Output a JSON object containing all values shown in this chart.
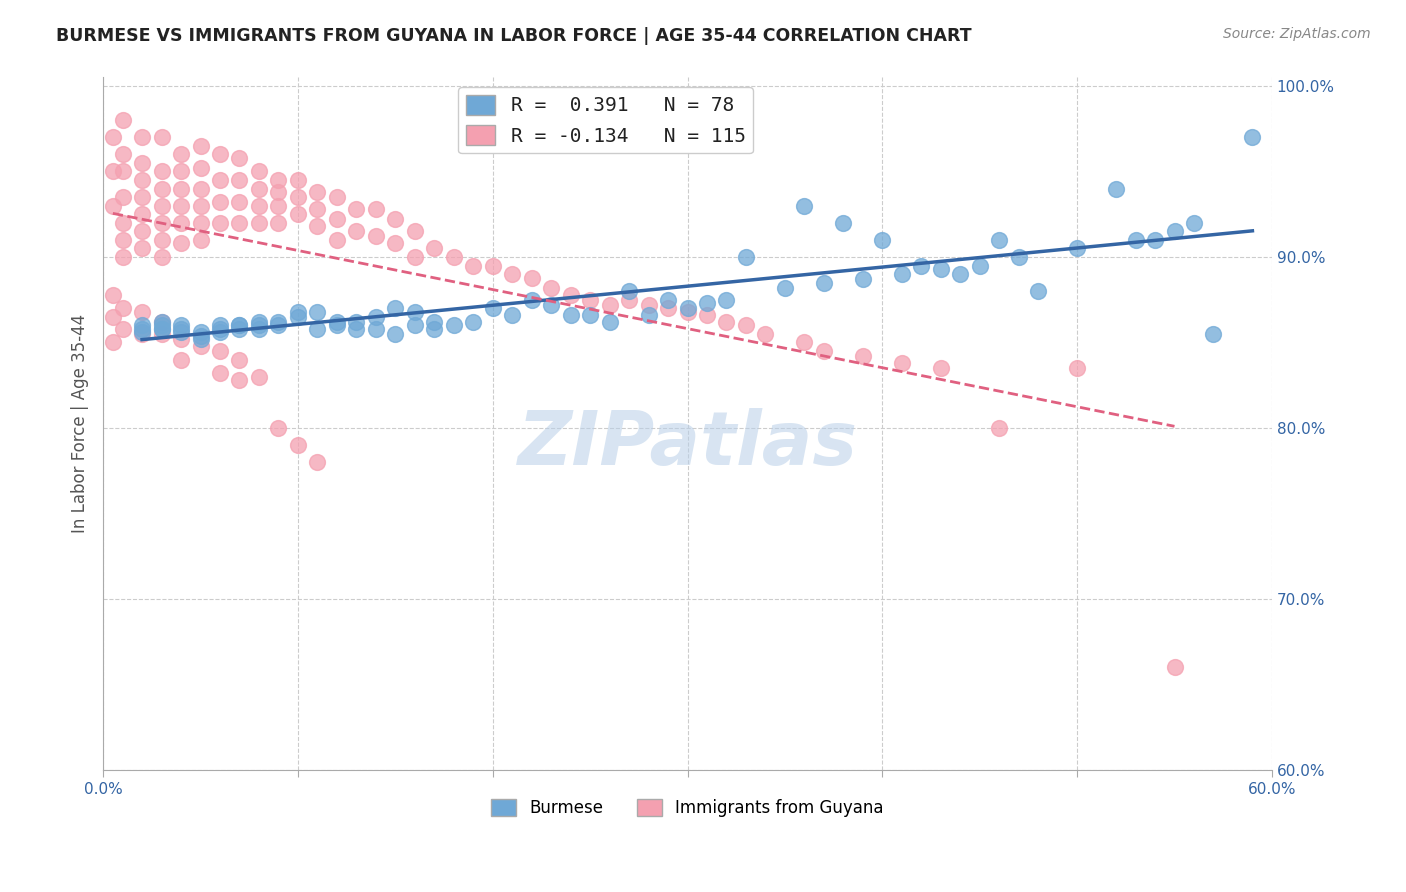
{
  "title": "BURMESE VS IMMIGRANTS FROM GUYANA IN LABOR FORCE | AGE 35-44 CORRELATION CHART",
  "source": "Source: ZipAtlas.com",
  "ylabel": "In Labor Force | Age 35-44",
  "blue_R": 0.391,
  "blue_N": 78,
  "pink_R": -0.134,
  "pink_N": 115,
  "legend_blue_label": "Burmese",
  "legend_pink_label": "Immigrants from Guyana",
  "xlim": [
    0.0,
    0.6
  ],
  "ylim": [
    0.6,
    1.005
  ],
  "xticks": [
    0.0,
    0.1,
    0.2,
    0.3,
    0.4,
    0.5,
    0.6
  ],
  "xtick_labels": [
    "0.0%",
    "",
    "",
    "",
    "",
    "",
    "60.0%"
  ],
  "ytick_labels_right": [
    "60.0%",
    "70.0%",
    "80.0%",
    "90.0%",
    "100.0%"
  ],
  "yticks_right": [
    0.6,
    0.7,
    0.8,
    0.9,
    1.0
  ],
  "blue_color": "#6fa8d6",
  "pink_color": "#f4a0b0",
  "blue_line_color": "#3465a4",
  "pink_line_color": "#e06080",
  "grid_color": "#cccccc",
  "background_color": "#ffffff",
  "watermark": "ZIPatlas",
  "blue_scatter_x": [
    0.02,
    0.02,
    0.02,
    0.03,
    0.03,
    0.03,
    0.03,
    0.04,
    0.04,
    0.04,
    0.05,
    0.05,
    0.05,
    0.06,
    0.06,
    0.06,
    0.07,
    0.07,
    0.07,
    0.08,
    0.08,
    0.08,
    0.09,
    0.09,
    0.1,
    0.1,
    0.11,
    0.11,
    0.12,
    0.12,
    0.13,
    0.13,
    0.14,
    0.14,
    0.15,
    0.15,
    0.16,
    0.16,
    0.17,
    0.17,
    0.18,
    0.19,
    0.2,
    0.21,
    0.22,
    0.23,
    0.24,
    0.25,
    0.26,
    0.27,
    0.28,
    0.29,
    0.3,
    0.31,
    0.32,
    0.33,
    0.35,
    0.36,
    0.37,
    0.38,
    0.39,
    0.4,
    0.41,
    0.42,
    0.43,
    0.44,
    0.45,
    0.46,
    0.47,
    0.48,
    0.5,
    0.52,
    0.53,
    0.54,
    0.55,
    0.56,
    0.57,
    0.59
  ],
  "blue_scatter_y": [
    0.856,
    0.86,
    0.858,
    0.858,
    0.862,
    0.86,
    0.858,
    0.86,
    0.858,
    0.856,
    0.856,
    0.852,
    0.854,
    0.858,
    0.86,
    0.856,
    0.86,
    0.858,
    0.86,
    0.858,
    0.862,
    0.86,
    0.862,
    0.86,
    0.865,
    0.868,
    0.868,
    0.858,
    0.86,
    0.862,
    0.862,
    0.858,
    0.865,
    0.858,
    0.87,
    0.855,
    0.868,
    0.86,
    0.862,
    0.858,
    0.86,
    0.862,
    0.87,
    0.866,
    0.875,
    0.872,
    0.866,
    0.866,
    0.862,
    0.88,
    0.866,
    0.875,
    0.87,
    0.873,
    0.875,
    0.9,
    0.882,
    0.93,
    0.885,
    0.92,
    0.887,
    0.91,
    0.89,
    0.895,
    0.893,
    0.89,
    0.895,
    0.91,
    0.9,
    0.88,
    0.905,
    0.94,
    0.91,
    0.91,
    0.915,
    0.92,
    0.855,
    0.97
  ],
  "pink_scatter_x": [
    0.005,
    0.005,
    0.005,
    0.01,
    0.01,
    0.01,
    0.01,
    0.01,
    0.01,
    0.01,
    0.02,
    0.02,
    0.02,
    0.02,
    0.02,
    0.02,
    0.02,
    0.03,
    0.03,
    0.03,
    0.03,
    0.03,
    0.03,
    0.03,
    0.04,
    0.04,
    0.04,
    0.04,
    0.04,
    0.04,
    0.05,
    0.05,
    0.05,
    0.05,
    0.05,
    0.05,
    0.06,
    0.06,
    0.06,
    0.06,
    0.07,
    0.07,
    0.07,
    0.07,
    0.08,
    0.08,
    0.08,
    0.08,
    0.09,
    0.09,
    0.09,
    0.09,
    0.1,
    0.1,
    0.1,
    0.11,
    0.11,
    0.11,
    0.12,
    0.12,
    0.12,
    0.13,
    0.13,
    0.14,
    0.14,
    0.15,
    0.15,
    0.16,
    0.16,
    0.17,
    0.18,
    0.19,
    0.2,
    0.21,
    0.22,
    0.23,
    0.24,
    0.25,
    0.26,
    0.27,
    0.28,
    0.29,
    0.3,
    0.31,
    0.32,
    0.33,
    0.34,
    0.36,
    0.37,
    0.39,
    0.41,
    0.43,
    0.46,
    0.5,
    0.55,
    0.005,
    0.005,
    0.005,
    0.01,
    0.01,
    0.02,
    0.02,
    0.03,
    0.03,
    0.04,
    0.04,
    0.05,
    0.06,
    0.06,
    0.07,
    0.07,
    0.08,
    0.09,
    0.1,
    0.11
  ],
  "pink_scatter_y": [
    0.97,
    0.95,
    0.93,
    0.98,
    0.96,
    0.95,
    0.935,
    0.92,
    0.91,
    0.9,
    0.97,
    0.955,
    0.945,
    0.935,
    0.925,
    0.915,
    0.905,
    0.97,
    0.95,
    0.94,
    0.93,
    0.92,
    0.91,
    0.9,
    0.96,
    0.95,
    0.94,
    0.93,
    0.92,
    0.908,
    0.965,
    0.952,
    0.94,
    0.93,
    0.92,
    0.91,
    0.96,
    0.945,
    0.932,
    0.92,
    0.958,
    0.945,
    0.932,
    0.92,
    0.95,
    0.94,
    0.93,
    0.92,
    0.945,
    0.938,
    0.93,
    0.92,
    0.945,
    0.935,
    0.925,
    0.938,
    0.928,
    0.918,
    0.935,
    0.922,
    0.91,
    0.928,
    0.915,
    0.928,
    0.912,
    0.922,
    0.908,
    0.915,
    0.9,
    0.905,
    0.9,
    0.895,
    0.895,
    0.89,
    0.888,
    0.882,
    0.878,
    0.875,
    0.872,
    0.875,
    0.872,
    0.87,
    0.868,
    0.866,
    0.862,
    0.86,
    0.855,
    0.85,
    0.845,
    0.842,
    0.838,
    0.835,
    0.8,
    0.835,
    0.66,
    0.878,
    0.865,
    0.85,
    0.87,
    0.858,
    0.868,
    0.855,
    0.862,
    0.855,
    0.852,
    0.84,
    0.848,
    0.845,
    0.832,
    0.84,
    0.828,
    0.83,
    0.8,
    0.79,
    0.78
  ]
}
